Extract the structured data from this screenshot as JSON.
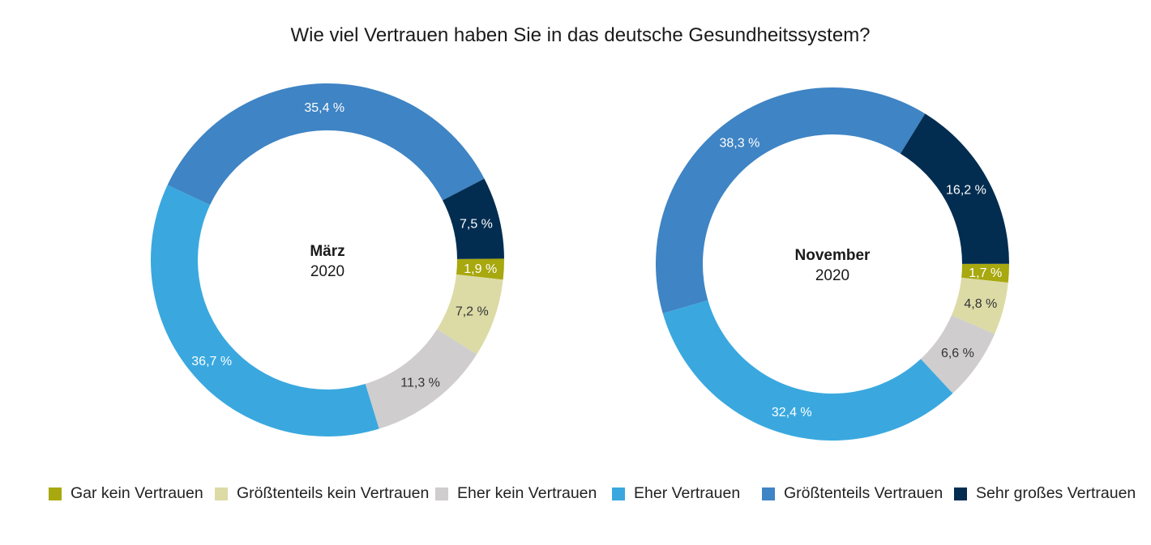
{
  "title": "Wie viel Vertrauen haben Sie in das deutsche Gesundheitssystem?",
  "categories": [
    "Gar kein Vertrauen",
    "Größtenteils kein Vertrauen",
    "Eher kein Vertrauen",
    "Eher Vertrauen",
    "Größtenteils Vertrauen",
    "Sehr großes Vertrauen"
  ],
  "colors": {
    "Gar kein Vertrauen": "#a8a80f",
    "Größtenteils kein Vertrauen": "#dcdba6",
    "Eher kein Vertrauen": "#cfcdcd",
    "Eher Vertrauen": "#3aa8df",
    "Größtenteils Vertrauen": "#3f84c4",
    "Sehr großes Vertrauen": "#032d50"
  },
  "label_colors": {
    "Gar kein Vertrauen": "#ffffff",
    "Größtenteils kein Vertrauen": "#333333",
    "Eher kein Vertrauen": "#333333",
    "Eher Vertrauen": "#ffffff",
    "Größtenteils Vertrauen": "#ffffff",
    "Sehr großes Vertrauen": "#ffffff"
  },
  "chart_data": [
    {
      "type": "pie",
      "center_label": "März",
      "center_sublabel": "2020",
      "categories": [
        "Gar kein Vertrauen",
        "Größtenteils kein Vertrauen",
        "Eher kein Vertrauen",
        "Eher Vertrauen",
        "Größtenteils Vertrauen",
        "Sehr großes Vertrauen"
      ],
      "values": [
        1.9,
        7.2,
        11.3,
        36.7,
        35.4,
        7.5
      ],
      "data_labels": [
        "1,9 %",
        "7,2 %",
        "11,3 %",
        "36,7 %",
        "35,4 %",
        "7,5 %"
      ]
    },
    {
      "type": "pie",
      "center_label": "November",
      "center_sublabel": "2020",
      "categories": [
        "Gar kein Vertrauen",
        "Größtenteils kein Vertrauen",
        "Eher kein Vertrauen",
        "Eher Vertrauen",
        "Größtenteils Vertrauen",
        "Sehr großes Vertrauen"
      ],
      "values": [
        1.7,
        4.8,
        6.6,
        32.4,
        38.3,
        16.2
      ],
      "data_labels": [
        "1,7 %",
        "4,8 %",
        "6,6 %",
        "32,4 %",
        "38,3 %",
        "16,2 %"
      ]
    }
  ]
}
